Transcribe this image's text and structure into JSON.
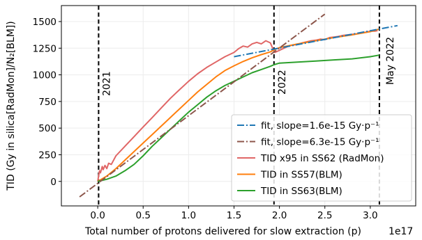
{
  "chart_data": {
    "type": "line",
    "xlabel": "Total number of protons delivered for slow extraction (p)",
    "x_offset_label": "1e17",
    "ylabel": "TID (Gy in silica[RadMon]/N₂[BLM])",
    "xlim": [
      -0.4,
      3.5
    ],
    "ylim": [
      -230,
      1650
    ],
    "x_ticks": [
      0.0,
      0.5,
      1.0,
      1.5,
      2.0,
      2.5,
      3.0
    ],
    "x_tick_labels": [
      "0.0",
      "0.5",
      "1.0",
      "1.5",
      "2.0",
      "2.5",
      "3.0"
    ],
    "y_ticks": [
      0,
      250,
      500,
      750,
      1000,
      1250,
      1500
    ],
    "y_tick_labels": [
      "0",
      "250",
      "500",
      "750",
      "1000",
      "1250",
      "1500"
    ],
    "grid": true,
    "legend_position": "lower-right",
    "vlines": [
      {
        "x": 0.01,
        "label": "2021"
      },
      {
        "x": 1.94,
        "label": "2022"
      },
      {
        "x": 3.1,
        "label": "May 2022"
      }
    ],
    "series": [
      {
        "name": "fit,    slope=1.6e-15 Gy·p⁻¹",
        "color": "#1f77b4",
        "style": "dashdot",
        "x": [
          1.5,
          3.3
        ],
        "y": [
          1170,
          1462
        ]
      },
      {
        "name": "fit,    slope=6.3e-15 Gy·p⁻¹",
        "color": "#8c564b",
        "style": "dashdot",
        "x": [
          -0.2,
          2.5
        ],
        "y": [
          -145,
          1570
        ]
      },
      {
        "name": "TID x95 in SS62 (RadMon)",
        "color": "#e06666",
        "style": "solid",
        "x": [
          0.0,
          0.02,
          0.03,
          0.05,
          0.06,
          0.08,
          0.1,
          0.12,
          0.15,
          0.2,
          0.3,
          0.4,
          0.5,
          0.6,
          0.7,
          0.8,
          0.9,
          1.0,
          1.1,
          1.2,
          1.3,
          1.4,
          1.5,
          1.55,
          1.6,
          1.65,
          1.7,
          1.75,
          1.8,
          1.85,
          1.9,
          1.93,
          1.95,
          2.0,
          2.05,
          2.1,
          2.15,
          2.2,
          2.25,
          2.3,
          2.35,
          2.4,
          2.45,
          2.5,
          2.55,
          2.6,
          2.65,
          2.7,
          2.75,
          2.8,
          2.85,
          2.9,
          2.95,
          3.0,
          3.05,
          3.08
        ],
        "y": [
          0,
          100,
          80,
          140,
          110,
          150,
          120,
          170,
          160,
          240,
          330,
          420,
          510,
          600,
          690,
          780,
          860,
          940,
          1010,
          1070,
          1120,
          1170,
          1210,
          1245,
          1270,
          1260,
          1290,
          1305,
          1290,
          1320,
          1300,
          1240,
          1210,
          1230,
          1250,
          1270,
          1280,
          1285,
          1300,
          1310,
          1320,
          1325,
          1335,
          1330,
          1350,
          1355,
          1360,
          1370,
          1375,
          1380,
          1385,
          1395,
          1400,
          1410,
          1410,
          1415
        ]
      },
      {
        "name": "TID  in  SS57(BLM)",
        "color": "#ff7f0e",
        "style": "solid",
        "x": [
          0.0,
          0.1,
          0.2,
          0.3,
          0.4,
          0.5,
          0.6,
          0.7,
          0.8,
          0.9,
          1.0,
          1.1,
          1.2,
          1.3,
          1.4,
          1.5,
          1.6,
          1.7,
          1.8,
          1.9,
          1.94,
          2.0,
          2.2,
          2.4,
          2.6,
          2.8,
          3.0,
          3.1
        ],
        "y": [
          0,
          50,
          120,
          200,
          280,
          360,
          440,
          520,
          600,
          680,
          760,
          840,
          910,
          980,
          1040,
          1085,
          1125,
          1160,
          1190,
          1215,
          1235,
          1255,
          1290,
          1320,
          1350,
          1375,
          1405,
          1430
        ]
      },
      {
        "name": "TID  in  SS63(BLM)",
        "color": "#2ca02c",
        "style": "solid",
        "x": [
          0.0,
          0.1,
          0.2,
          0.3,
          0.4,
          0.5,
          0.6,
          0.7,
          0.8,
          0.9,
          1.0,
          1.1,
          1.2,
          1.3,
          1.4,
          1.5,
          1.6,
          1.7,
          1.8,
          1.9,
          1.94,
          2.0,
          2.2,
          2.4,
          2.6,
          2.8,
          3.0,
          3.1
        ],
        "y": [
          0,
          20,
          50,
          100,
          160,
          240,
          330,
          410,
          490,
          570,
          650,
          720,
          790,
          850,
          900,
          940,
          980,
          1020,
          1050,
          1080,
          1095,
          1110,
          1120,
          1130,
          1140,
          1150,
          1170,
          1185
        ]
      }
    ]
  }
}
